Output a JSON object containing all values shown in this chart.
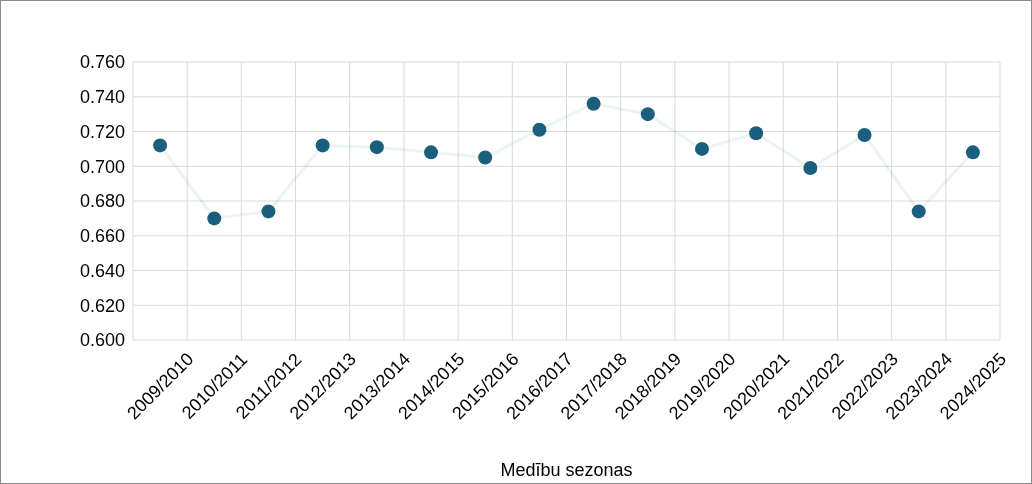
{
  "chart_data": {
    "type": "line",
    "xlabel": "Medību sezonas",
    "categories": [
      "2009/2010",
      "2010/2011",
      "2011/2012",
      "2012/2013",
      "2013/2014",
      "2014/2015",
      "2015/2016",
      "2016/2017",
      "2017/2018",
      "2018/2019",
      "2019/2020",
      "2020/2021",
      "2021/2022",
      "2022/2023",
      "2023/2024",
      "2024/2025"
    ],
    "series": [
      {
        "color": "#1b5f7e",
        "values": [
          0.712,
          0.67,
          0.674,
          0.712,
          0.711,
          0.708,
          0.705,
          0.721,
          0.736,
          0.73,
          0.71,
          0.719,
          0.699,
          0.718,
          0.674,
          0.708
        ]
      }
    ],
    "ylim": [
      0.6,
      0.76
    ],
    "yticks": [
      {
        "value": 0.6,
        "label": "0.600"
      },
      {
        "value": 0.62,
        "label": "0.620"
      },
      {
        "value": 0.64,
        "label": "0.640"
      },
      {
        "value": 0.66,
        "label": "0.660"
      },
      {
        "value": 0.68,
        "label": "0.680"
      },
      {
        "value": 0.7,
        "label": "0.700"
      },
      {
        "value": 0.72,
        "label": "0.720"
      },
      {
        "value": 0.74,
        "label": "0.740"
      },
      {
        "value": 0.76,
        "label": "0.760"
      }
    ],
    "grid": true,
    "marker": "circle"
  }
}
